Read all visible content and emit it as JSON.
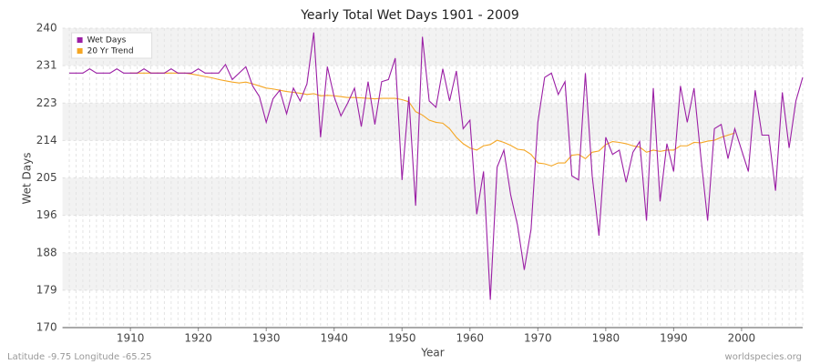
{
  "chart_data": {
    "type": "line",
    "title": "Yearly Total Wet Days 1901 - 2009",
    "xlabel": "Year",
    "ylabel": "Wet Days",
    "footer_left": "Latitude -9.75 Longitude -65.25",
    "footer_right": "worldspecies.org",
    "x": [
      1901,
      1902,
      1903,
      1904,
      1905,
      1906,
      1907,
      1908,
      1909,
      1910,
      1911,
      1912,
      1913,
      1914,
      1915,
      1916,
      1917,
      1918,
      1919,
      1920,
      1921,
      1922,
      1923,
      1924,
      1925,
      1926,
      1927,
      1928,
      1929,
      1930,
      1931,
      1932,
      1933,
      1934,
      1935,
      1936,
      1937,
      1938,
      1939,
      1940,
      1941,
      1942,
      1943,
      1944,
      1945,
      1946,
      1947,
      1948,
      1949,
      1950,
      1951,
      1952,
      1953,
      1954,
      1955,
      1956,
      1957,
      1958,
      1959,
      1960,
      1961,
      1962,
      1963,
      1964,
      1965,
      1966,
      1967,
      1968,
      1969,
      1970,
      1971,
      1972,
      1973,
      1974,
      1975,
      1976,
      1977,
      1978,
      1979,
      1980,
      1981,
      1982,
      1983,
      1984,
      1985,
      1986,
      1987,
      1988,
      1989,
      1990,
      1991,
      1992,
      1993,
      1994,
      1995,
      1996,
      1997,
      1998,
      1999,
      2000,
      2001,
      2002,
      2003,
      2004,
      2005,
      2006,
      2007,
      2008,
      2009
    ],
    "series": [
      {
        "name": "Wet Days",
        "color": "#9b1fa5",
        "values": [
          229.5,
          229.5,
          229.5,
          230.5,
          229.5,
          229.5,
          229.5,
          230.5,
          229.5,
          229.5,
          229.5,
          230.5,
          229.5,
          229.5,
          229.5,
          230.5,
          229.5,
          229.5,
          229.5,
          230.5,
          229.5,
          229.5,
          229.5,
          231.5,
          228,
          229.5,
          231,
          226.5,
          224,
          218,
          223.5,
          225.5,
          220,
          226,
          223,
          227,
          239,
          214.5,
          231,
          224,
          219.5,
          222.5,
          226,
          217,
          227.5,
          217.5,
          227.5,
          228,
          233,
          204.5,
          224,
          198.5,
          238,
          223,
          221.5,
          230.5,
          223,
          230,
          216.5,
          218.5,
          196.5,
          206.5,
          176.5,
          207.5,
          211.5,
          201,
          194,
          183.5,
          193,
          218,
          228.5,
          229.5,
          224.5,
          227.5,
          205.5,
          204.5,
          229.5,
          205.5,
          191.5,
          214.5,
          210.5,
          211.5,
          204,
          211,
          213.5,
          195,
          226,
          199.5,
          213,
          206.5,
          226.5,
          218,
          226,
          210,
          195,
          216.5,
          217.5,
          209.5,
          216.5,
          211.5,
          206.5,
          225.5,
          215,
          215,
          202,
          225,
          212,
          223,
          228.5
        ]
      },
      {
        "name": "20 Yr Trend",
        "color": "#f5a623",
        "values": [
          null,
          null,
          null,
          null,
          null,
          null,
          null,
          null,
          null,
          229.5,
          229.5,
          229.5,
          229.5,
          229.5,
          229.5,
          229.5,
          229.5,
          229.5,
          229.3,
          229,
          228.7,
          228.4,
          228,
          227.7,
          227.4,
          227.2,
          227.4,
          227,
          226.5,
          226,
          225.8,
          225.5,
          225.2,
          225,
          224.8,
          224.5,
          224.7,
          224.2,
          224.3,
          224.2,
          224,
          223.8,
          223.8,
          223.7,
          223.6,
          223.5,
          223.6,
          223.6,
          223.6,
          223.3,
          222.8,
          220.5,
          219.7,
          218.5,
          218,
          217.8,
          216.5,
          214.5,
          213,
          212,
          211.5,
          212.5,
          212.8,
          213.8,
          213.3,
          212.6,
          211.7,
          211.5,
          210.5,
          208.5,
          208.3,
          207.8,
          208.5,
          208.5,
          210.3,
          210.5,
          209.5,
          211,
          211.3,
          212.8,
          213.5,
          213.3,
          213,
          212.5,
          212.2,
          211,
          211.5,
          211.2,
          211.5,
          211.5,
          212.5,
          212.5,
          213.3,
          213.2,
          213.6,
          213.8,
          214.5,
          215,
          215.5,
          null,
          null,
          null,
          null,
          null,
          null,
          null,
          null,
          null,
          null
        ]
      }
    ],
    "xlim": [
      1900,
      2009
    ],
    "xticks": [
      1910,
      1920,
      1930,
      1940,
      1950,
      1960,
      1970,
      1980,
      1990,
      2000
    ],
    "ylim": [
      170,
      240
    ],
    "yticks": [
      170,
      {
        "value": 178.75,
        "label": "179"
      },
      {
        "value": 187.5,
        "label": "188"
      },
      {
        "value": 196.25,
        "label": "196"
      },
      205,
      {
        "value": 213.75,
        "label": "214"
      },
      {
        "value": 222.5,
        "label": "223"
      },
      {
        "value": 231.25,
        "label": "231"
      },
      240
    ],
    "grid": true,
    "legend": "upper-left"
  }
}
